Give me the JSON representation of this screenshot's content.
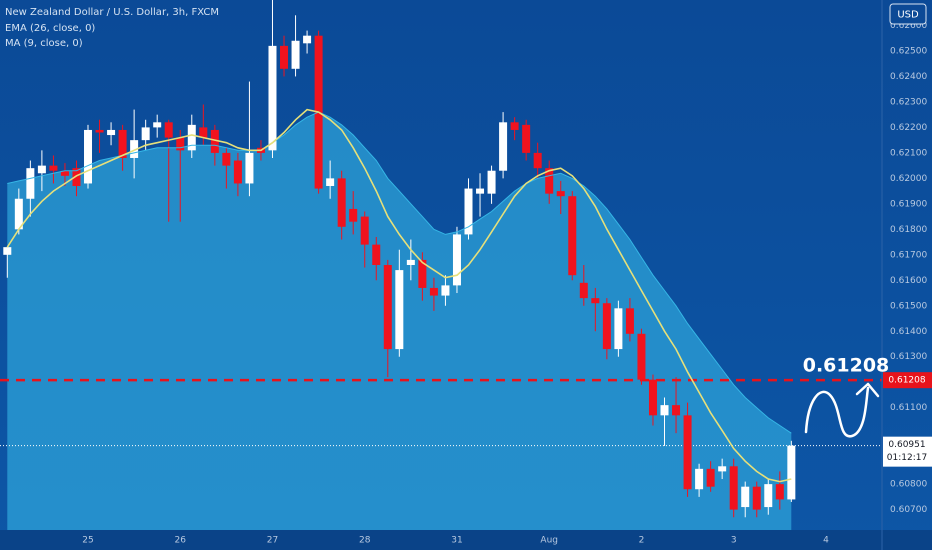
{
  "chart_data": {
    "type": "candlestick",
    "title": "New Zealand Dollar / U.S. Dollar, 3h, FXCM",
    "currency": "USD",
    "categories": [
      null,
      null,
      null,
      null,
      null,
      null,
      null,
      "25",
      null,
      null,
      null,
      null,
      null,
      null,
      null,
      "26",
      null,
      null,
      null,
      null,
      null,
      null,
      null,
      "27",
      null,
      null,
      null,
      null,
      null,
      null,
      null,
      "28",
      null,
      null,
      null,
      null,
      null,
      null,
      null,
      "31",
      null,
      null,
      null,
      null,
      null,
      null,
      null,
      "Aug",
      null,
      null,
      null,
      null,
      null,
      null,
      null,
      "2",
      null,
      null,
      null,
      null,
      null,
      null,
      null,
      "3",
      null,
      null,
      null,
      null,
      null,
      null,
      null,
      "4"
    ],
    "open": [
      0.617,
      0.618,
      0.6192,
      0.6202,
      0.6205,
      0.6203,
      0.6204,
      0.6198,
      0.6219,
      0.6217,
      0.6219,
      0.6208,
      0.6215,
      0.622,
      0.6222,
      0.6216,
      0.6211,
      0.622,
      0.6219,
      0.621,
      0.6207,
      0.6198,
      0.6212,
      0.6211,
      0.6252,
      0.6243,
      0.6253,
      0.6256,
      0.6197,
      0.62,
      0.6188,
      0.6185,
      0.6174,
      0.6166,
      0.6133,
      0.6166,
      0.6168,
      0.6157,
      0.6154,
      0.6158,
      0.6178,
      0.6194,
      0.6194,
      0.6203,
      0.6222,
      0.6221,
      0.621,
      0.6204,
      0.6195,
      0.6193,
      0.6159,
      0.6153,
      0.6151,
      0.6133,
      0.6149,
      0.6139,
      0.6121,
      0.6107,
      0.6111,
      0.6107,
      0.6078,
      0.6086,
      0.6085,
      0.6087,
      0.6071,
      0.6079,
      0.6071,
      0.608,
      0.6074,
      null,
      null,
      null
    ],
    "high": [
      0.6173,
      0.6196,
      0.6207,
      0.6211,
      0.6209,
      0.6206,
      0.6207,
      0.6221,
      0.6223,
      0.6222,
      0.6221,
      0.6227,
      0.6223,
      0.6225,
      0.6223,
      0.6219,
      0.6225,
      0.6229,
      0.6221,
      0.6212,
      0.621,
      0.6238,
      0.6215,
      0.627,
      0.6256,
      0.6264,
      0.6258,
      0.6258,
      0.6207,
      0.6203,
      0.6195,
      0.6187,
      0.6177,
      0.6168,
      0.6172,
      0.6176,
      0.6171,
      0.6161,
      0.6162,
      0.6181,
      0.62,
      0.6202,
      0.6205,
      0.6226,
      0.6224,
      0.6223,
      0.6214,
      0.6207,
      0.6199,
      0.6195,
      0.6166,
      0.6157,
      0.6153,
      0.6152,
      0.6153,
      0.6141,
      0.6123,
      0.6114,
      0.6122,
      0.6112,
      0.6088,
      0.6089,
      0.609,
      0.609,
      0.6081,
      0.6081,
      0.6082,
      0.6085,
      0.6097,
      null,
      null,
      null
    ],
    "low": [
      0.6161,
      0.6178,
      0.6185,
      0.6195,
      0.6198,
      0.6197,
      0.6193,
      0.6196,
      0.621,
      0.6213,
      0.6203,
      0.62,
      0.6211,
      0.6216,
      0.6183,
      0.6183,
      0.6208,
      0.6213,
      0.6205,
      0.6196,
      0.6193,
      0.6193,
      0.6207,
      0.6208,
      0.624,
      0.624,
      0.6249,
      0.6194,
      0.6192,
      0.6176,
      0.6178,
      0.6165,
      0.616,
      0.6122,
      0.613,
      0.616,
      0.6152,
      0.6148,
      0.615,
      0.6155,
      0.6176,
      0.6185,
      0.619,
      0.62,
      0.6215,
      0.6207,
      0.62,
      0.619,
      0.6186,
      0.616,
      0.615,
      0.614,
      0.6129,
      0.613,
      0.6136,
      0.6119,
      0.6103,
      0.6095,
      0.61,
      0.6075,
      0.6075,
      0.6077,
      0.6082,
      0.6067,
      0.6067,
      0.6067,
      0.6068,
      0.607,
      0.6073,
      null,
      null,
      null
    ],
    "close": [
      0.6173,
      0.6192,
      0.6204,
      0.6205,
      0.6203,
      0.6201,
      0.6197,
      0.6219,
      0.6218,
      0.6219,
      0.6208,
      0.6215,
      0.622,
      0.6222,
      0.6216,
      0.6211,
      0.6221,
      0.6216,
      0.621,
      0.6205,
      0.6198,
      0.621,
      0.621,
      0.6252,
      0.6243,
      0.6254,
      0.6256,
      0.6196,
      0.62,
      0.6181,
      0.6183,
      0.6174,
      0.6166,
      0.6133,
      0.6164,
      0.6168,
      0.6157,
      0.6154,
      0.6158,
      0.6178,
      0.6196,
      0.6196,
      0.6203,
      0.6222,
      0.6219,
      0.621,
      0.6204,
      0.6194,
      0.6193,
      0.6162,
      0.6153,
      0.6151,
      0.6133,
      0.6149,
      0.6139,
      0.6121,
      0.6107,
      0.6111,
      0.6107,
      0.6078,
      0.6086,
      0.6079,
      0.6087,
      0.607,
      0.6079,
      0.607,
      0.608,
      0.6074,
      0.60951,
      null,
      null,
      null
    ],
    "up_color": "#ffffff",
    "down_color": "#f0131e",
    "indicators": [
      {
        "name": "EMA (26, close, 0)",
        "color": "#35b6e6",
        "area": true,
        "values": [
          0.6198,
          0.6199,
          0.62,
          0.6201,
          0.6202,
          0.6203,
          0.6203,
          0.6205,
          0.6207,
          0.6208,
          0.6209,
          0.621,
          0.6211,
          0.6212,
          0.6212,
          0.6212,
          0.6213,
          0.6213,
          0.6213,
          0.6212,
          0.6211,
          0.6211,
          0.6211,
          0.6214,
          0.6217,
          0.6221,
          0.6224,
          0.6226,
          0.6224,
          0.6221,
          0.6217,
          0.6212,
          0.6207,
          0.62,
          0.6195,
          0.619,
          0.6185,
          0.618,
          0.6178,
          0.6179,
          0.6181,
          0.6184,
          0.6187,
          0.6191,
          0.6195,
          0.6198,
          0.62,
          0.6201,
          0.6202,
          0.62,
          0.6197,
          0.6193,
          0.6188,
          0.6182,
          0.6176,
          0.6169,
          0.6162,
          0.6156,
          0.615,
          0.6143,
          0.6137,
          0.6131,
          0.6125,
          0.6119,
          0.6114,
          0.611,
          0.6106,
          0.6103,
          0.61,
          null,
          null,
          null
        ]
      },
      {
        "name": "MA (9, close, 0)",
        "color": "#e6e07a",
        "area": false,
        "values": [
          0.6173,
          0.618,
          0.6186,
          0.6191,
          0.6195,
          0.6198,
          0.6201,
          0.6203,
          0.6205,
          0.6207,
          0.6209,
          0.6211,
          0.6213,
          0.6214,
          0.6215,
          0.6216,
          0.6217,
          0.6216,
          0.6215,
          0.6214,
          0.6212,
          0.6211,
          0.6211,
          0.6214,
          0.6218,
          0.6223,
          0.6227,
          0.6226,
          0.6223,
          0.6219,
          0.6212,
          0.6204,
          0.6195,
          0.6185,
          0.6178,
          0.6172,
          0.6167,
          0.6164,
          0.6161,
          0.6162,
          0.6166,
          0.6172,
          0.6179,
          0.6186,
          0.6193,
          0.6198,
          0.6201,
          0.6203,
          0.6204,
          0.6201,
          0.6196,
          0.6189,
          0.618,
          0.6172,
          0.6164,
          0.6156,
          0.6148,
          0.614,
          0.6133,
          0.6124,
          0.6116,
          0.6108,
          0.6101,
          0.6094,
          0.6089,
          0.6085,
          0.6082,
          0.6081,
          0.6082,
          null,
          null,
          null
        ]
      }
    ],
    "ylim": [
      0.6062,
      0.627
    ],
    "yticks": [
      {
        "value": 0.626,
        "label": "0.62600"
      },
      {
        "value": 0.625,
        "label": "0.62500"
      },
      {
        "value": 0.624,
        "label": "0.62400"
      },
      {
        "value": 0.623,
        "label": "0.62300"
      },
      {
        "value": 0.622,
        "label": "0.62200"
      },
      {
        "value": 0.621,
        "label": "0.62100"
      },
      {
        "value": 0.62,
        "label": "0.62000"
      },
      {
        "value": 0.619,
        "label": "0.61900"
      },
      {
        "value": 0.618,
        "label": "0.61800"
      },
      {
        "value": 0.617,
        "label": "0.61700"
      },
      {
        "value": 0.616,
        "label": "0.61600"
      },
      {
        "value": 0.615,
        "label": "0.61500"
      },
      {
        "value": 0.614,
        "label": "0.61400"
      },
      {
        "value": 0.613,
        "label": "0.61300"
      },
      {
        "value": 0.611,
        "label": "0.61100"
      },
      {
        "value": 0.608,
        "label": "0.60800"
      },
      {
        "value": 0.607,
        "label": "0.60700"
      }
    ],
    "grid": false,
    "target": {
      "value": 0.61208,
      "label": "0.61208",
      "color": "#e8131b"
    },
    "last": {
      "value": 0.60951,
      "label": "0.60951",
      "countdown": "01:12:17"
    }
  }
}
